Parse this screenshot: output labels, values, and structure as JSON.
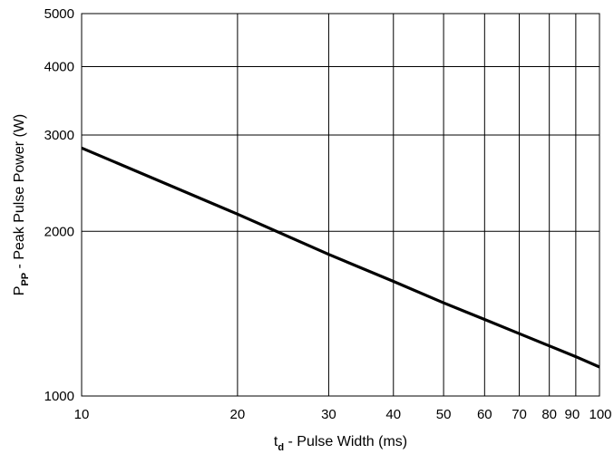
{
  "chart_data": {
    "type": "line",
    "title": "",
    "xlabel": {
      "main": "t",
      "subscript": "d",
      "rest": " - Pulse Width (ms)"
    },
    "ylabel": {
      "main": "P",
      "subscript": "PP",
      "rest": " - Peak Pulse Power (W)"
    },
    "x_scale": "log",
    "y_scale": "log",
    "xlim": [
      10,
      100
    ],
    "ylim": [
      1000,
      5000
    ],
    "x_ticks": [
      {
        "value": 10,
        "label": "10"
      },
      {
        "value": 20,
        "label": "20"
      },
      {
        "value": 30,
        "label": "30"
      },
      {
        "value": 40,
        "label": "40"
      },
      {
        "value": 50,
        "label": "50"
      },
      {
        "value": 60,
        "label": "60"
      },
      {
        "value": 70,
        "label": "70"
      },
      {
        "value": 80,
        "label": "80"
      },
      {
        "value": 90,
        "label": "90"
      },
      {
        "value": 100,
        "label": "100"
      }
    ],
    "y_ticks": [
      {
        "value": 1000,
        "label": "1000"
      },
      {
        "value": 2000,
        "label": "2000"
      },
      {
        "value": 3000,
        "label": "3000"
      },
      {
        "value": 4000,
        "label": "4000"
      },
      {
        "value": 5000,
        "label": "5000"
      }
    ],
    "grid": true,
    "series": [
      {
        "color": "#000000",
        "x": [
          10,
          20,
          30,
          40,
          50,
          60,
          70,
          80,
          90,
          100
        ],
        "y": [
          2840,
          2150,
          1815,
          1620,
          1480,
          1380,
          1300,
          1235,
          1180,
          1130
        ]
      }
    ]
  }
}
